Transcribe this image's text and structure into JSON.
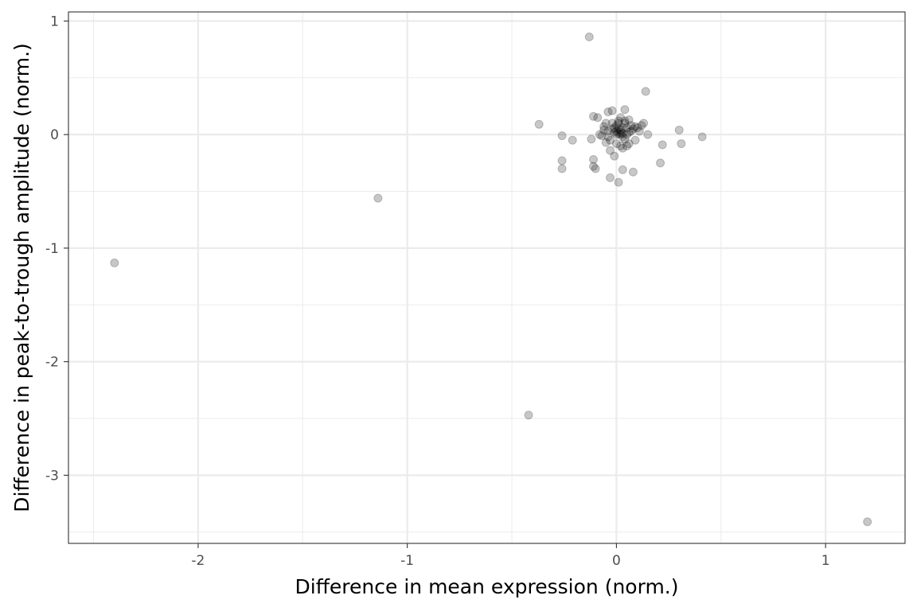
{
  "chart_data": {
    "type": "scatter",
    "title": "",
    "xlabel": "Difference in mean expression (norm.)",
    "ylabel": "Difference in peak-to-trough amplitude (norm.)",
    "xlim": [
      -2.62,
      1.38
    ],
    "ylim": [
      -3.6,
      1.08
    ],
    "x_ticks": [
      -2,
      -1,
      0,
      1
    ],
    "x_tick_labels": [
      "-2",
      "-1",
      "0",
      "1"
    ],
    "y_ticks": [
      1,
      0,
      -1,
      -2,
      -3
    ],
    "y_tick_labels": [
      "1",
      "0",
      "-1",
      "-2",
      "-3"
    ],
    "grid": true,
    "theme": "bw",
    "point_color": "#000000",
    "point_alpha": 0.22,
    "series": [
      {
        "points": [
          [
            -2.4,
            -1.13
          ],
          [
            -1.14,
            -0.56
          ],
          [
            -0.42,
            -2.47
          ],
          [
            1.2,
            -3.41
          ],
          [
            -0.13,
            0.86
          ],
          [
            0.14,
            0.38
          ],
          [
            -0.37,
            0.09
          ],
          [
            -0.26,
            -0.01
          ],
          [
            -0.21,
            -0.05
          ],
          [
            -0.26,
            -0.23
          ],
          [
            -0.26,
            -0.3
          ],
          [
            -0.11,
            -0.22
          ],
          [
            -0.11,
            -0.28
          ],
          [
            -0.1,
            -0.3
          ],
          [
            -0.12,
            -0.04
          ],
          [
            -0.11,
            0.16
          ],
          [
            -0.09,
            0.15
          ],
          [
            -0.04,
            0.2
          ],
          [
            -0.02,
            0.21
          ],
          [
            0.04,
            0.22
          ],
          [
            -0.03,
            -0.38
          ],
          [
            0.01,
            -0.42
          ],
          [
            0.03,
            -0.31
          ],
          [
            0.08,
            -0.33
          ],
          [
            0.21,
            -0.25
          ],
          [
            0.22,
            -0.09
          ],
          [
            0.3,
            0.04
          ],
          [
            0.31,
            -0.08
          ],
          [
            0.41,
            -0.02
          ],
          [
            0.15,
            0.0
          ],
          [
            0.12,
            0.08
          ],
          [
            0.13,
            0.1
          ],
          [
            0.1,
            0.06
          ],
          [
            -0.08,
            0.0
          ],
          [
            -0.06,
            0.07
          ],
          [
            -0.05,
            0.1
          ],
          [
            -0.04,
            0.03
          ],
          [
            -0.03,
            -0.05
          ],
          [
            -0.02,
            0.05
          ],
          [
            -0.01,
            0.02
          ],
          [
            0.0,
            0.08
          ],
          [
            0.01,
            0.12
          ],
          [
            0.02,
            0.04
          ],
          [
            0.03,
            -0.02
          ],
          [
            0.04,
            0.1
          ],
          [
            0.05,
            0.06
          ],
          [
            0.06,
            -0.08
          ],
          [
            0.07,
            0.03
          ],
          [
            0.08,
            0.05
          ],
          [
            0.09,
            -0.05
          ],
          [
            0.02,
            -0.1
          ],
          [
            0.03,
            -0.12
          ],
          [
            -0.01,
            -0.19
          ],
          [
            -0.03,
            -0.14
          ],
          [
            0.0,
            -0.08
          ],
          [
            0.05,
            0.0
          ],
          [
            0.06,
            0.13
          ],
          [
            0.02,
            0.15
          ],
          [
            -0.07,
            -0.01
          ],
          [
            -0.05,
            -0.07
          ],
          [
            0.04,
            -0.04
          ],
          [
            0.01,
            0.01
          ],
          [
            0.0,
            0.03
          ],
          [
            0.02,
            0.0
          ],
          [
            0.03,
            0.06
          ],
          [
            -0.02,
            0.1
          ],
          [
            0.07,
            0.08
          ],
          [
            0.04,
            0.12
          ],
          [
            0.01,
            0.1
          ],
          [
            -0.01,
            0.06
          ],
          [
            0.11,
            0.03
          ],
          [
            0.09,
            0.07
          ],
          [
            -0.06,
            0.04
          ],
          [
            0.05,
            -0.1
          ],
          [
            0.0,
            0.0
          ],
          [
            0.01,
            0.05
          ],
          [
            0.02,
            0.02
          ],
          [
            -0.04,
            -0.02
          ],
          [
            0.03,
            0.01
          ],
          [
            0.06,
            0.02
          ]
        ]
      }
    ]
  }
}
